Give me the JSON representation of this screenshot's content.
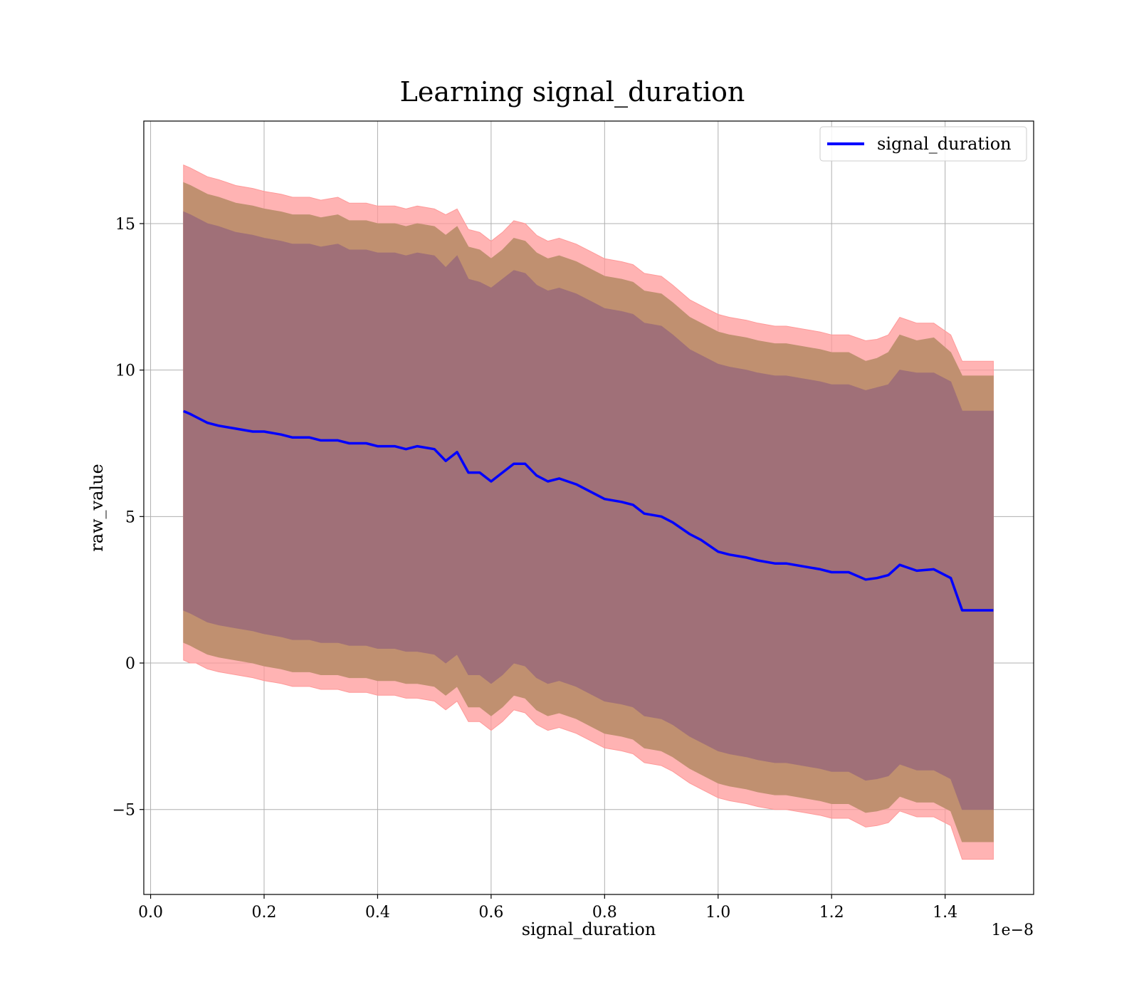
{
  "chart_data": {
    "type": "area",
    "title": "Learning signal_duration",
    "xlabel": "signal_duration",
    "ylabel": "raw_value",
    "x_offset_label": "1e−8",
    "xlim": [
      -0.012,
      1.556
    ],
    "ylim": [
      -7.9,
      18.5
    ],
    "x_ticks": [
      0.0,
      0.2,
      0.4,
      0.6,
      0.8,
      1.0,
      1.2,
      1.4
    ],
    "x_tick_labels": [
      "0.0",
      "0.2",
      "0.4",
      "0.6",
      "0.8",
      "1.0",
      "1.2",
      "1.4"
    ],
    "y_ticks": [
      -5,
      0,
      5,
      10,
      15
    ],
    "y_tick_labels": [
      "−5",
      "0",
      "5",
      "10",
      "15"
    ],
    "grid": true,
    "legend": {
      "position": "top-right",
      "entries": [
        {
          "label": "signal_duration",
          "color": "#0000ff"
        }
      ]
    },
    "colors": {
      "line": "#0000ff",
      "band_outer": "#ff9999",
      "band_middle": "#c09070",
      "band_inner": "#a07078"
    },
    "series": [
      {
        "name": "signal_duration",
        "x": [
          0.058,
          0.07,
          0.08,
          0.1,
          0.12,
          0.15,
          0.18,
          0.2,
          0.23,
          0.25,
          0.28,
          0.3,
          0.33,
          0.35,
          0.38,
          0.4,
          0.43,
          0.45,
          0.47,
          0.5,
          0.52,
          0.54,
          0.56,
          0.58,
          0.6,
          0.62,
          0.64,
          0.66,
          0.68,
          0.7,
          0.72,
          0.75,
          0.78,
          0.8,
          0.83,
          0.85,
          0.87,
          0.9,
          0.92,
          0.95,
          0.97,
          1.0,
          1.02,
          1.05,
          1.07,
          1.1,
          1.12,
          1.15,
          1.18,
          1.2,
          1.23,
          1.26,
          1.28,
          1.3,
          1.32,
          1.35,
          1.38,
          1.41,
          1.43,
          1.485
        ],
        "y": [
          8.6,
          8.5,
          8.4,
          8.2,
          8.1,
          8.0,
          7.9,
          7.9,
          7.8,
          7.7,
          7.7,
          7.6,
          7.6,
          7.5,
          7.5,
          7.4,
          7.4,
          7.3,
          7.4,
          7.3,
          6.9,
          7.2,
          6.5,
          6.5,
          6.2,
          6.5,
          6.8,
          6.8,
          6.4,
          6.2,
          6.3,
          6.1,
          5.8,
          5.6,
          5.5,
          5.4,
          5.1,
          5.0,
          4.8,
          4.4,
          4.2,
          3.8,
          3.7,
          3.6,
          3.5,
          3.4,
          3.4,
          3.3,
          3.2,
          3.1,
          3.1,
          2.85,
          2.9,
          3.0,
          3.35,
          3.15,
          3.2,
          2.9,
          1.8,
          1.8
        ]
      }
    ],
    "bands": [
      {
        "id": "outer",
        "upper": [
          17.0,
          16.9,
          16.8,
          16.6,
          16.5,
          16.3,
          16.2,
          16.1,
          16.0,
          15.9,
          15.9,
          15.8,
          15.9,
          15.7,
          15.7,
          15.6,
          15.6,
          15.5,
          15.6,
          15.5,
          15.3,
          15.5,
          14.8,
          14.7,
          14.4,
          14.7,
          15.1,
          15.0,
          14.6,
          14.4,
          14.5,
          14.3,
          14.0,
          13.8,
          13.7,
          13.6,
          13.3,
          13.2,
          12.9,
          12.4,
          12.2,
          11.9,
          11.8,
          11.7,
          11.6,
          11.5,
          11.5,
          11.4,
          11.3,
          11.2,
          11.2,
          11.0,
          11.05,
          11.2,
          11.8,
          11.6,
          11.6,
          11.2,
          10.3,
          10.3
        ],
        "lower": [
          0.1,
          0.0,
          0.0,
          -0.2,
          -0.3,
          -0.4,
          -0.5,
          -0.6,
          -0.7,
          -0.8,
          -0.8,
          -0.9,
          -0.9,
          -1.0,
          -1.0,
          -1.1,
          -1.1,
          -1.2,
          -1.2,
          -1.3,
          -1.6,
          -1.3,
          -2.0,
          -2.0,
          -2.3,
          -2.0,
          -1.6,
          -1.7,
          -2.1,
          -2.3,
          -2.2,
          -2.4,
          -2.7,
          -2.9,
          -3.0,
          -3.1,
          -3.4,
          -3.5,
          -3.7,
          -4.1,
          -4.3,
          -4.6,
          -4.7,
          -4.8,
          -4.9,
          -5.0,
          -5.0,
          -5.1,
          -5.2,
          -5.3,
          -5.3,
          -5.6,
          -5.55,
          -5.45,
          -5.05,
          -5.25,
          -5.25,
          -5.55,
          -6.7,
          -6.7
        ]
      },
      {
        "id": "middle",
        "upper": [
          16.4,
          16.3,
          16.2,
          16.0,
          15.9,
          15.7,
          15.6,
          15.5,
          15.4,
          15.3,
          15.3,
          15.2,
          15.3,
          15.1,
          15.1,
          15.0,
          15.0,
          14.9,
          15.0,
          14.9,
          14.6,
          14.9,
          14.2,
          14.1,
          13.8,
          14.1,
          14.5,
          14.4,
          14.0,
          13.8,
          13.9,
          13.7,
          13.4,
          13.2,
          13.1,
          13.0,
          12.7,
          12.6,
          12.3,
          11.8,
          11.6,
          11.3,
          11.2,
          11.1,
          11.0,
          10.9,
          10.9,
          10.8,
          10.7,
          10.6,
          10.6,
          10.3,
          10.4,
          10.6,
          11.2,
          11.0,
          11.1,
          10.6,
          9.8,
          9.8
        ],
        "lower": [
          0.7,
          0.6,
          0.5,
          0.3,
          0.2,
          0.1,
          0.0,
          -0.1,
          -0.2,
          -0.3,
          -0.3,
          -0.4,
          -0.4,
          -0.5,
          -0.5,
          -0.6,
          -0.6,
          -0.7,
          -0.7,
          -0.8,
          -1.1,
          -0.8,
          -1.5,
          -1.5,
          -1.8,
          -1.5,
          -1.1,
          -1.2,
          -1.6,
          -1.8,
          -1.7,
          -1.9,
          -2.2,
          -2.4,
          -2.5,
          -2.6,
          -2.9,
          -3.0,
          -3.2,
          -3.6,
          -3.8,
          -4.1,
          -4.2,
          -4.3,
          -4.4,
          -4.5,
          -4.5,
          -4.6,
          -4.7,
          -4.8,
          -4.8,
          -5.1,
          -5.05,
          -4.95,
          -4.55,
          -4.75,
          -4.75,
          -5.05,
          -6.1,
          -6.1
        ]
      },
      {
        "id": "inner",
        "upper": [
          15.4,
          15.3,
          15.2,
          15.0,
          14.9,
          14.7,
          14.6,
          14.5,
          14.4,
          14.3,
          14.3,
          14.2,
          14.3,
          14.1,
          14.1,
          14.0,
          14.0,
          13.9,
          14.0,
          13.9,
          13.5,
          13.9,
          13.1,
          13.0,
          12.8,
          13.1,
          13.4,
          13.3,
          12.9,
          12.7,
          12.8,
          12.6,
          12.3,
          12.1,
          12.0,
          11.9,
          11.6,
          11.5,
          11.2,
          10.7,
          10.5,
          10.2,
          10.1,
          10.0,
          9.9,
          9.8,
          9.8,
          9.7,
          9.6,
          9.5,
          9.5,
          9.3,
          9.4,
          9.5,
          10.0,
          9.9,
          9.9,
          9.6,
          8.6,
          8.6
        ],
        "lower": [
          1.8,
          1.7,
          1.6,
          1.4,
          1.3,
          1.2,
          1.1,
          1.0,
          0.9,
          0.8,
          0.8,
          0.7,
          0.7,
          0.6,
          0.6,
          0.5,
          0.5,
          0.4,
          0.4,
          0.3,
          0.0,
          0.3,
          -0.4,
          -0.4,
          -0.7,
          -0.4,
          0.0,
          -0.1,
          -0.5,
          -0.7,
          -0.6,
          -0.8,
          -1.1,
          -1.3,
          -1.4,
          -1.5,
          -1.8,
          -1.9,
          -2.1,
          -2.5,
          -2.7,
          -3.0,
          -3.1,
          -3.2,
          -3.3,
          -3.4,
          -3.4,
          -3.5,
          -3.6,
          -3.7,
          -3.7,
          -4.0,
          -3.95,
          -3.85,
          -3.45,
          -3.65,
          -3.65,
          -3.95,
          -5.0,
          -5.0
        ]
      }
    ]
  }
}
